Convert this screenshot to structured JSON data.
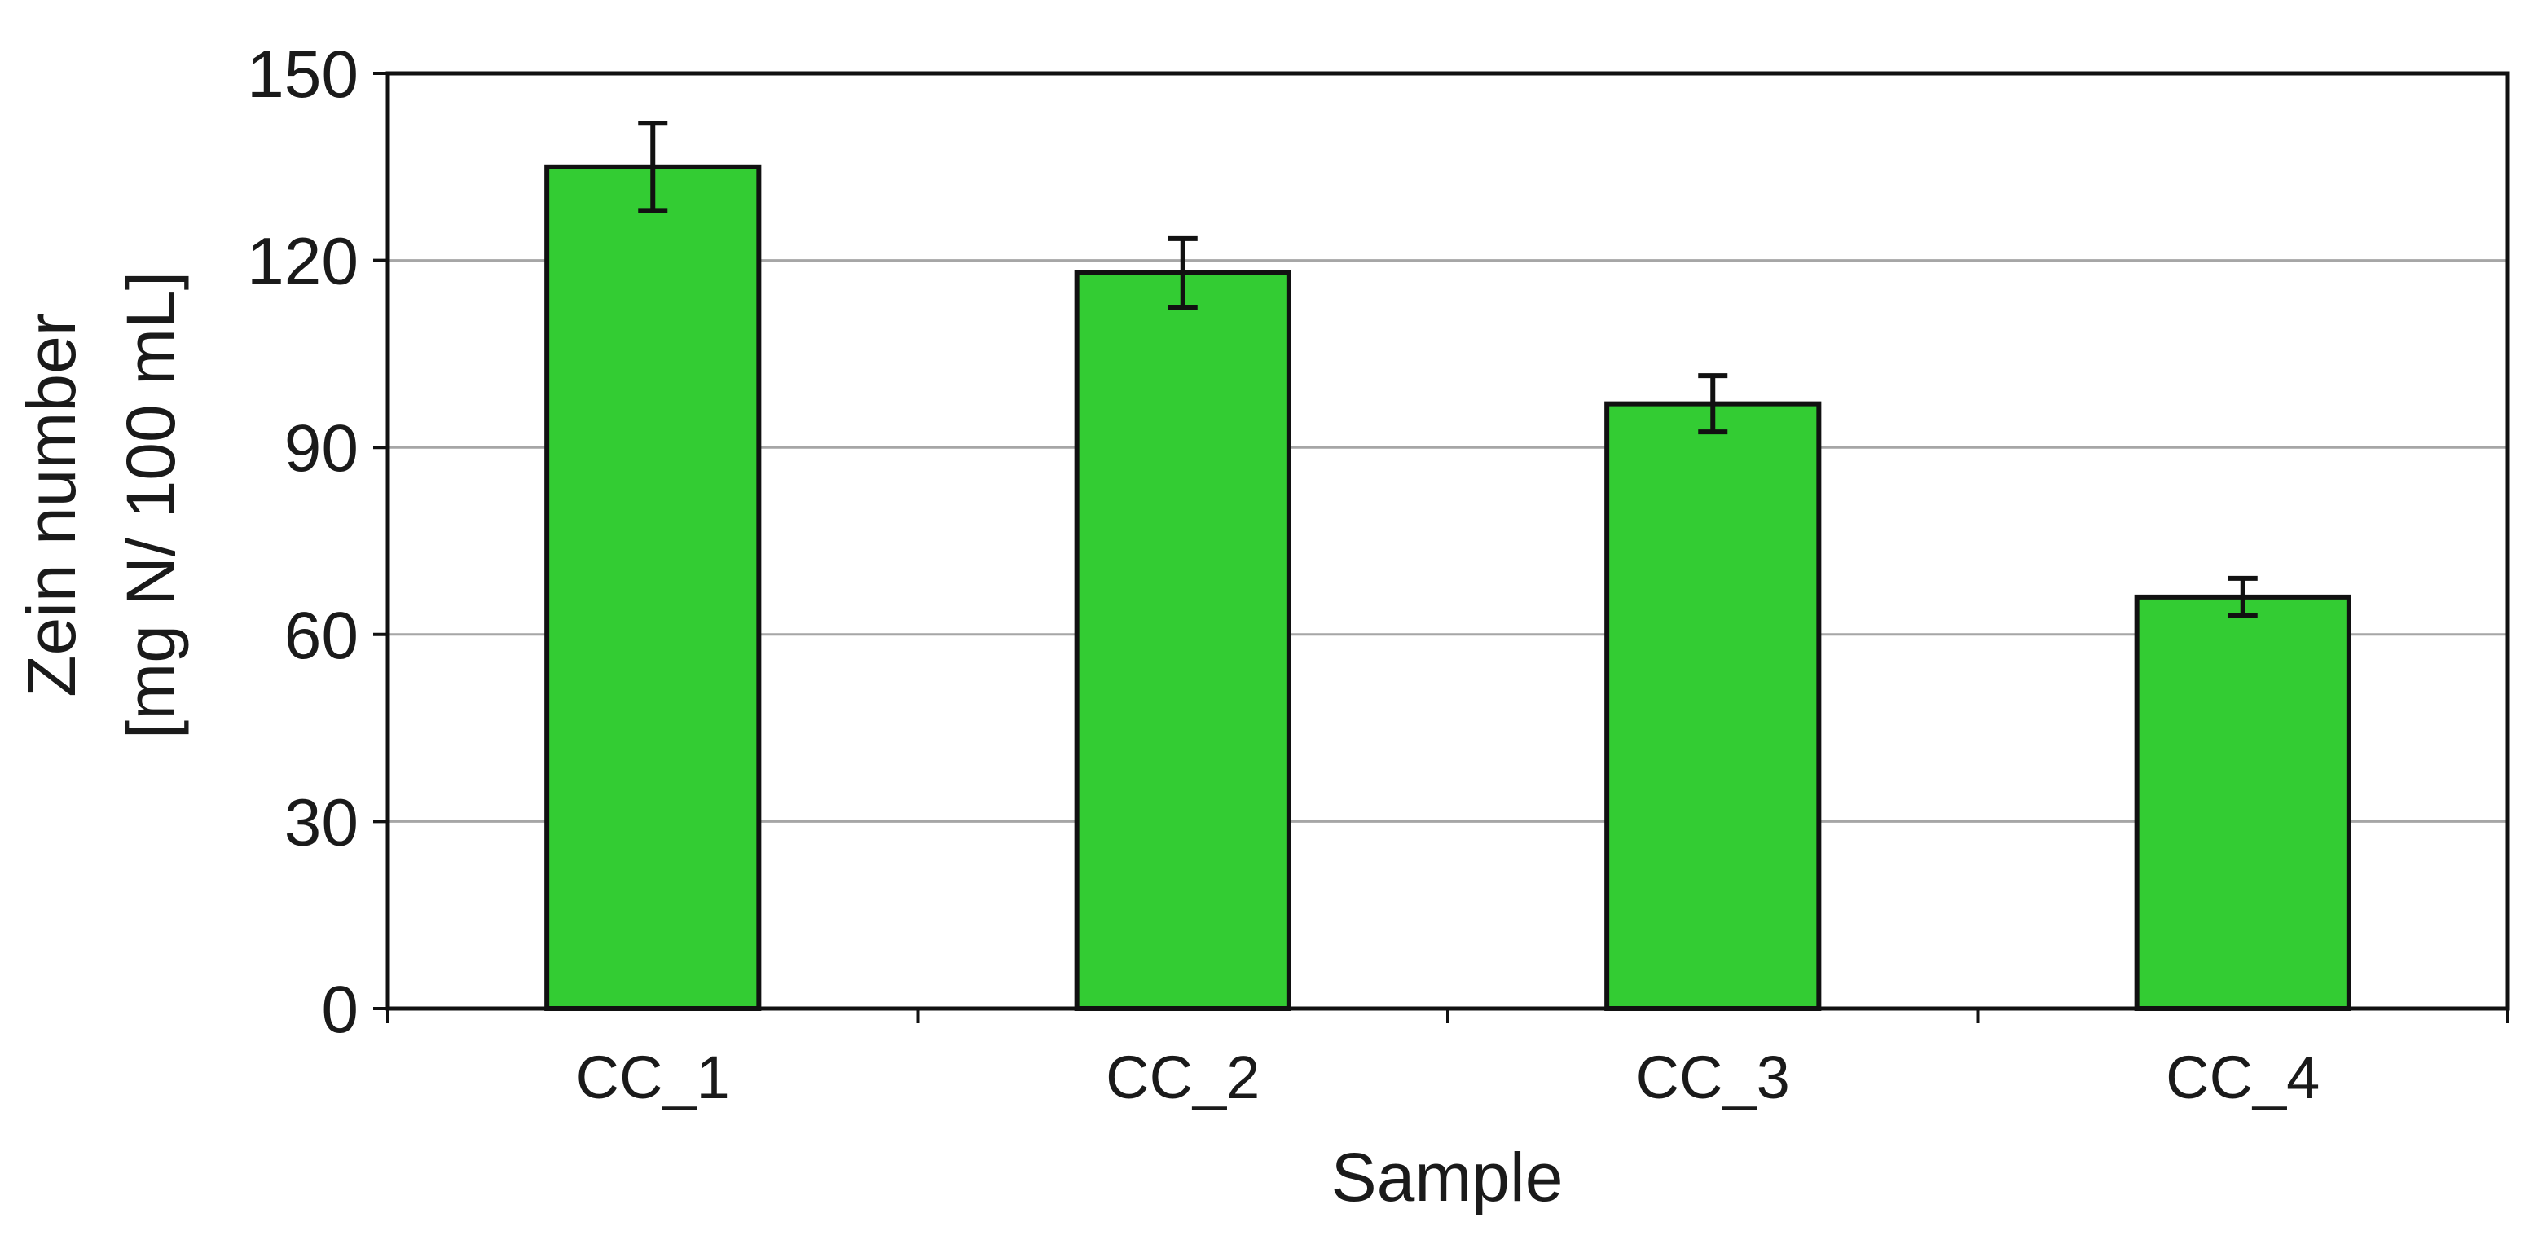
{
  "chart_data": {
    "type": "bar",
    "categories": [
      "CC_1",
      "CC_2",
      "CC_3",
      "CC_4"
    ],
    "values": [
      135,
      118,
      97,
      66
    ],
    "errors": [
      7,
      5.5,
      4.5,
      3
    ],
    "xlabel": "Sample",
    "ylabel_line1": "Zein number",
    "ylabel_line2": "[mg N/ 100 mL]",
    "ylim": [
      0,
      150
    ],
    "yticks": [
      0,
      30,
      60,
      90,
      120,
      150
    ],
    "grid": true,
    "legend": "none",
    "colors": {
      "bar_fill": "#33cc33",
      "bar_stroke": "#111111",
      "grid": "#a6a6a6",
      "frame": "#111111"
    }
  }
}
